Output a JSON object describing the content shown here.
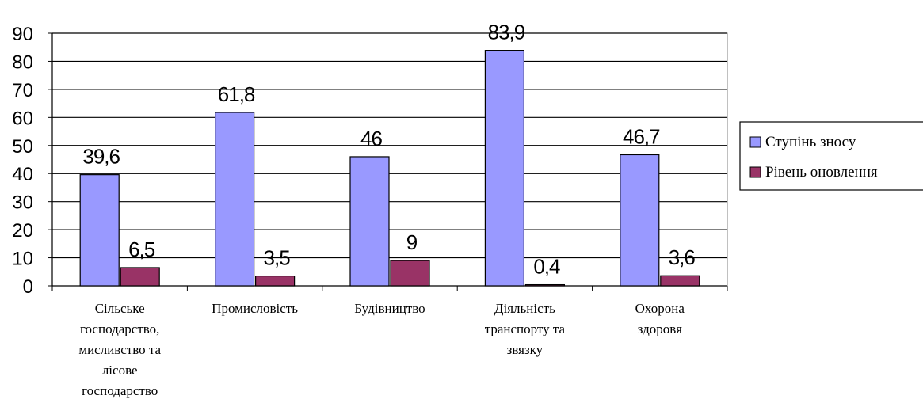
{
  "chart_data": {
    "type": "bar",
    "title": "",
    "xlabel": "",
    "ylabel": "",
    "ylim": [
      0,
      90
    ],
    "yticks": [
      0,
      10,
      20,
      30,
      40,
      50,
      60,
      70,
      80,
      90
    ],
    "grid": true,
    "legend_position": "right",
    "categories": [
      [
        "Сільське",
        "господарство,",
        "мисливство та",
        "лісове",
        "господарство"
      ],
      [
        "Промисловість"
      ],
      [
        "Будівництво"
      ],
      [
        "Діяльність",
        "транспорту та",
        "звязку"
      ],
      [
        "Охорона",
        "здоровя"
      ]
    ],
    "series": [
      {
        "name": "Ступінь зносу",
        "color": "#9999ff",
        "values": [
          39.6,
          61.8,
          46,
          83.9,
          46.7
        ],
        "labels": [
          "39,6",
          "61,8",
          "46",
          "83,9",
          "46,7"
        ]
      },
      {
        "name": "Рівень оновлення",
        "color": "#993366",
        "values": [
          6.5,
          3.5,
          9,
          0.4,
          3.6
        ],
        "labels": [
          "6,5",
          "3,5",
          "9",
          "0,4",
          "3,6"
        ]
      }
    ]
  }
}
